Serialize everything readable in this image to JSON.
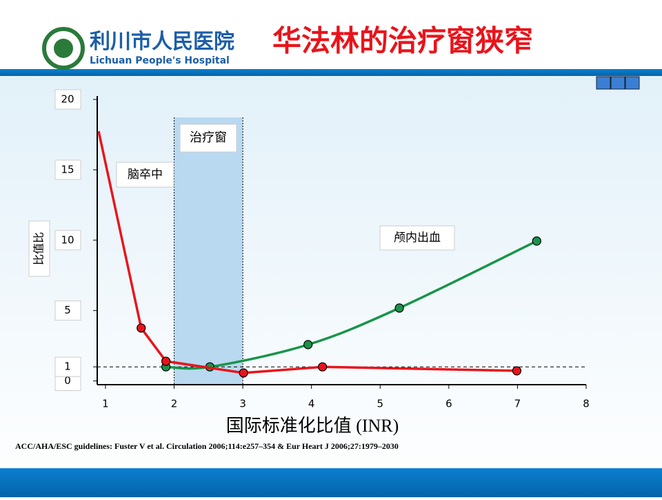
{
  "header": {
    "hospital_cn": "利川市人民医院",
    "hospital_en": "Lichuan People's Hospital",
    "title": "华法林的治疗窗狭窄"
  },
  "chart_data": {
    "type": "line",
    "y_label": "比值比",
    "x_label": "国际标准化比值 (INR)",
    "xlim": [
      0.88,
      8
    ],
    "xticks": [
      1,
      2,
      3,
      4,
      5,
      6,
      7,
      8
    ],
    "ylim": [
      -0.56,
      20
    ],
    "yticks": [
      0,
      1,
      5,
      10,
      15,
      20
    ],
    "reference_line": 1,
    "shaded_range": [
      2,
      3
    ],
    "annotations": {
      "window": "治疗窗",
      "stroke": "脑卒中",
      "bleed": "颅内出血"
    },
    "series": [
      {
        "name": "脑卒中",
        "color": "#e8141b",
        "x": [
          0.9,
          1.52,
          1.88,
          3.01,
          4.16,
          6.99
        ],
        "values": [
          17.75,
          3.76,
          1.4,
          0.57,
          1.0,
          0.72
        ],
        "markers": [
          false,
          true,
          true,
          true,
          true,
          true
        ]
      },
      {
        "name": "颅内出血",
        "color": "#17944a",
        "x": [
          1.88,
          2.52,
          3.95,
          5.28,
          7.28
        ],
        "values": [
          1.0,
          1.0,
          2.58,
          5.18,
          9.94
        ],
        "smooth": true
      }
    ]
  },
  "footer": {
    "citation": "ACC/AHA/ESC guidelines: Fuster V et al. Circulation 2006;114:e257–354 & Eur Heart J 2006;27:1979–2030"
  }
}
